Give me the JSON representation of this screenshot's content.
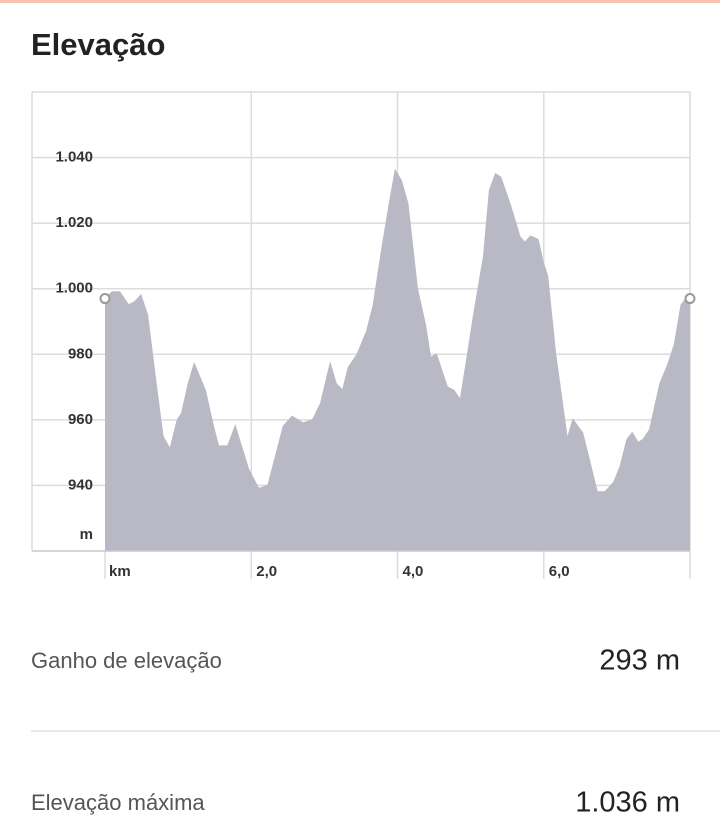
{
  "title": "Elevação",
  "chart_data": {
    "type": "area",
    "x_label": "km",
    "y_label": "m",
    "x": [
      0,
      0.1,
      0.2,
      0.32,
      0.41,
      0.49,
      0.58,
      0.68,
      0.79,
      0.89,
      0.99,
      1.05,
      1.14,
      1.22,
      1.37,
      1.47,
      1.55,
      1.68,
      1.78,
      1.96,
      2.1,
      2.23,
      2.44,
      2.56,
      2.71,
      2.84,
      2.95,
      3.08,
      3.16,
      3.25,
      3.33,
      3.45,
      3.58,
      3.67,
      3.78,
      3.89,
      3.97,
      4.05,
      4.14,
      4.27,
      4.38,
      4.45,
      4.53,
      4.68,
      4.77,
      4.86,
      4.96,
      5.05,
      5.18,
      5.26,
      5.34,
      5.41,
      5.55,
      5.67,
      5.74,
      5.82,
      5.92,
      5.99,
      6.05,
      6.16,
      6.32,
      6.4,
      6.53,
      6.63,
      6.73,
      6.84,
      6.96,
      7.05,
      7.14,
      7.21,
      7.29,
      7.36,
      7.45,
      7.59,
      7.7,
      7.79,
      7.88,
      7.95,
      8.0
    ],
    "y": [
      997,
      999,
      999,
      995,
      996,
      998,
      992,
      974,
      955,
      951,
      960,
      962,
      971,
      977,
      969,
      959,
      952,
      952,
      958,
      945,
      939,
      940,
      958,
      961,
      959,
      960,
      965,
      977,
      971,
      969,
      976,
      980,
      987,
      995,
      1011,
      1026,
      1036,
      1033,
      1026,
      1000,
      989,
      979,
      980,
      970,
      969,
      966,
      980,
      993,
      1010,
      1030,
      1035,
      1034,
      1025,
      1016,
      1014,
      1016,
      1015,
      1008,
      1004,
      980,
      954,
      960,
      956,
      947,
      938,
      938,
      941,
      946,
      954,
      956,
      953,
      954,
      957,
      971,
      977,
      983,
      995,
      997,
      997
    ],
    "color": "#b9b9c6",
    "xlim": [
      0,
      8.0
    ],
    "ylim": [
      920,
      1060
    ],
    "xticks": [
      {
        "value": 2,
        "label": "2,0"
      },
      {
        "value": 4,
        "label": "4,0"
      },
      {
        "value": 6,
        "label": "6,0"
      }
    ],
    "yticks": [
      {
        "value": 1040,
        "label": "1.040"
      },
      {
        "value": 1020,
        "label": "1.020"
      },
      {
        "value": 1000,
        "label": "1.000"
      },
      980,
      960,
      940
    ],
    "grid": true
  },
  "stats": [
    {
      "label": "Ganho de elevação",
      "value": "293 m"
    },
    {
      "label": "Elevação máxima",
      "value": "1.036 m"
    }
  ]
}
